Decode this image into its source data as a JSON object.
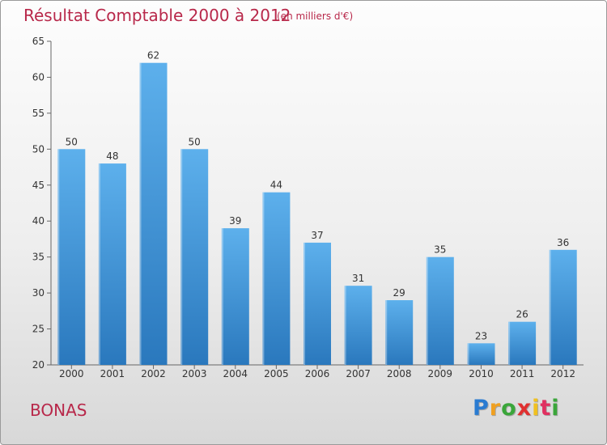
{
  "chart_data": {
    "type": "bar",
    "title": "Résultat Comptable 2000 à 2012",
    "subtitle": "(en milliers d'€)",
    "categories": [
      "2000",
      "2001",
      "2002",
      "2003",
      "2004",
      "2005",
      "2006",
      "2007",
      "2008",
      "2009",
      "2010",
      "2011",
      "2012"
    ],
    "values": [
      50,
      48,
      62,
      50,
      39,
      44,
      37,
      31,
      29,
      35,
      23,
      26,
      36
    ],
    "ylim": [
      20,
      65
    ],
    "yticks": [
      20,
      25,
      30,
      35,
      40,
      45,
      50,
      55,
      60,
      65
    ],
    "xlabel": "",
    "ylabel": "",
    "grid": false,
    "bar_color": "#3a8fd6"
  },
  "location": {
    "name": "BONAS"
  },
  "brand": {
    "letters": [
      "P",
      "r",
      "o",
      "x",
      "i",
      "t",
      "i"
    ],
    "colors": [
      "#2a7bd1",
      "#f0a020",
      "#3aa63a",
      "#e03030",
      "#f0c020",
      "#e03060",
      "#3aa63a"
    ]
  }
}
